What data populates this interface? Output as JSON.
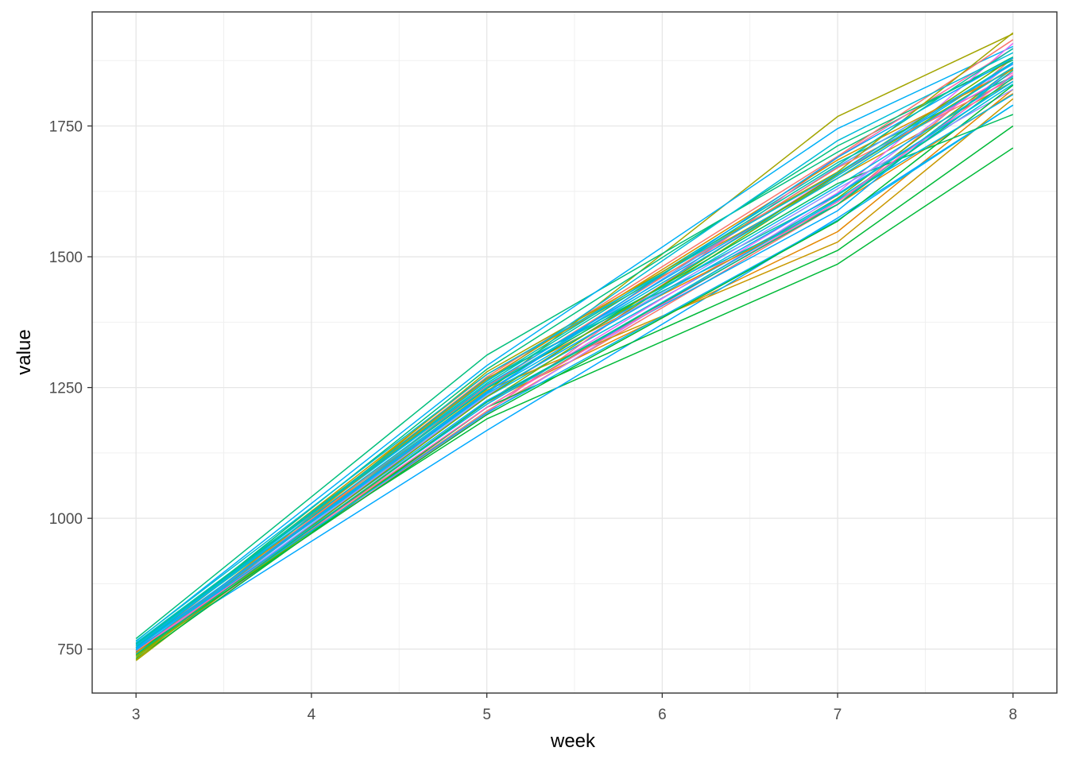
{
  "chart_data": {
    "type": "line",
    "title": "",
    "xlabel": "week",
    "ylabel": "value",
    "xlim": [
      2.75,
      8.25
    ],
    "ylim": [
      666,
      1968
    ],
    "x_ticks": [
      3,
      4,
      5,
      6,
      7,
      8
    ],
    "x_tick_labels": [
      "3",
      "4",
      "5",
      "6",
      "7",
      "8"
    ],
    "y_ticks": [
      750,
      1000,
      1250,
      1500,
      1750
    ],
    "y_tick_labels": [
      "750",
      "1000",
      "1250",
      "1500",
      "1750"
    ],
    "grid": true,
    "legend": "none",
    "x": [
      3,
      5,
      7,
      8
    ],
    "series": [
      {
        "color": "#F8766D",
        "values": [
          748,
          1205,
          1600,
          1880
        ]
      },
      {
        "color": "#E58700",
        "values": [
          742,
          1222,
          1548,
          1820
        ]
      },
      {
        "color": "#C99800",
        "values": [
          752,
          1275,
          1650,
          1835
        ]
      },
      {
        "color": "#A3A500",
        "values": [
          728,
          1242,
          1768,
          1926
        ]
      },
      {
        "color": "#6BB100",
        "values": [
          738,
          1212,
          1612,
          1860
        ]
      },
      {
        "color": "#00BA38",
        "values": [
          760,
          1190,
          1486,
          1708
        ]
      },
      {
        "color": "#00BF7D",
        "values": [
          770,
          1312,
          1700,
          1882
        ]
      },
      {
        "color": "#00C0AF",
        "values": [
          762,
          1262,
          1680,
          1845
        ]
      },
      {
        "color": "#00BCD8",
        "values": [
          752,
          1232,
          1610,
          1830
        ]
      },
      {
        "color": "#00B0F6",
        "values": [
          765,
          1292,
          1745,
          1902
        ]
      },
      {
        "color": "#619CFF",
        "values": [
          744,
          1242,
          1672,
          1868
        ]
      },
      {
        "color": "#B983FF",
        "values": [
          742,
          1200,
          1618,
          1872
        ]
      },
      {
        "color": "#E76BF3",
        "values": [
          748,
          1218,
          1622,
          1908
        ]
      },
      {
        "color": "#FD61D1",
        "values": [
          742,
          1232,
          1660,
          1852
        ]
      },
      {
        "color": "#FF67A4",
        "values": [
          740,
          1202,
          1690,
          1898
        ]
      },
      {
        "color": "#F8766D",
        "values": [
          750,
          1270,
          1692,
          1915
        ]
      },
      {
        "color": "#00A9FF",
        "values": [
          744,
          1168,
          1574,
          1790
        ]
      },
      {
        "color": "#00BA38",
        "values": [
          732,
          1212,
          1512,
          1750
        ]
      },
      {
        "color": "#C99800",
        "values": [
          746,
          1245,
          1528,
          1802
        ]
      },
      {
        "color": "#00BF7D",
        "values": [
          753,
          1285,
          1712,
          1876
        ]
      },
      {
        "color": "#7CAE00",
        "values": [
          735,
          1222,
          1655,
          1862
        ]
      },
      {
        "color": "#00B4F0",
        "values": [
          750,
          1202,
          1570,
          1790
        ]
      },
      {
        "color": "#00C1A3",
        "values": [
          758,
          1265,
          1618,
          1835
        ]
      },
      {
        "color": "#E58700",
        "values": [
          738,
          1255,
          1600,
          1812
        ]
      },
      {
        "color": "#00B8E7",
        "values": [
          762,
          1242,
          1635,
          1845
        ]
      },
      {
        "color": "#A3A500",
        "values": [
          730,
          1280,
          1662,
          1928
        ]
      },
      {
        "color": "#00BD5C",
        "values": [
          756,
          1248,
          1640,
          1772
        ]
      },
      {
        "color": "#00ABFD",
        "values": [
          748,
          1225,
          1588,
          1862
        ]
      },
      {
        "color": "#9590FF",
        "values": [
          742,
          1235,
          1630,
          1820
        ]
      },
      {
        "color": "#00BCD8",
        "values": [
          756,
          1262,
          1722,
          1890
        ]
      },
      {
        "color": "#F8766D",
        "values": [
          746,
          1252,
          1670,
          1840
        ]
      },
      {
        "color": "#00C0AF",
        "values": [
          752,
          1268,
          1600,
          1856
        ]
      },
      {
        "color": "#00B0F6",
        "values": [
          759,
          1255,
          1655,
          1870
        ]
      },
      {
        "color": "#6BB100",
        "values": [
          738,
          1232,
          1658,
          1880
        ]
      },
      {
        "color": "#00BA38",
        "values": [
          744,
          1198,
          1568,
          1828
        ]
      },
      {
        "color": "#00B8E7",
        "values": [
          748,
          1218,
          1608,
          1810
        ]
      },
      {
        "color": "#D89000",
        "values": [
          743,
          1266,
          1685,
          1858
        ]
      },
      {
        "color": "#FF62BC",
        "values": [
          747,
          1212,
          1605,
          1848
        ]
      },
      {
        "color": "#00BCD8",
        "values": [
          766,
          1275,
          1660,
          1872
        ]
      },
      {
        "color": "#00A9FF",
        "values": [
          752,
          1240,
          1690,
          1880
        ]
      },
      {
        "color": "#00BF7D",
        "values": [
          740,
          1222,
          1600,
          1842
        ]
      },
      {
        "color": "#00C1A3",
        "values": [
          760,
          1258,
          1675,
          1898
        ]
      },
      {
        "color": "#00B4F0",
        "values": [
          748,
          1238,
          1620,
          1835
        ]
      },
      {
        "color": "#00BCD8",
        "values": [
          756,
          1250,
          1650,
          1862
        ]
      }
    ]
  }
}
